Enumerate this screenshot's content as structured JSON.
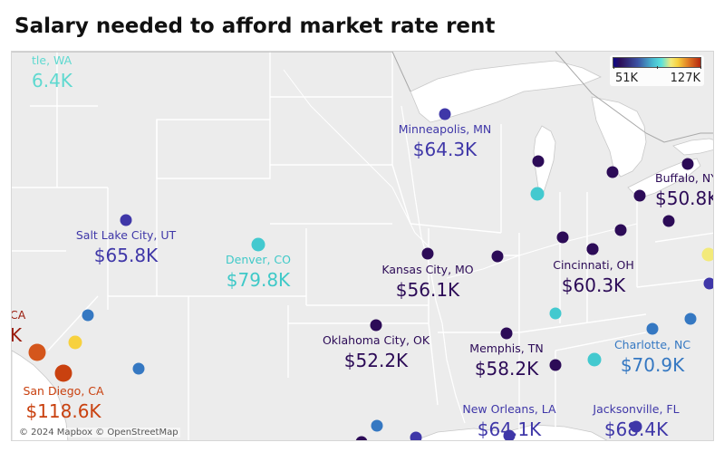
{
  "title": "Salary needed to afford market rate rent",
  "legend": {
    "min_label": "51K",
    "max_label": "127K",
    "min_value": 51,
    "max_value": 127
  },
  "attribution": "© 2024 Mapbox © OpenStreetMap",
  "colors": {
    "deep_purple": "#2c0b57",
    "indigo": "#3f37a8",
    "blue": "#3578c2",
    "cyan": "#43c9cf",
    "yellow": "#f7d13e",
    "orange": "#d4561c",
    "red": "#b8250f",
    "label_seattle": "#3fd0c8",
    "label_la": "#9a1b0c"
  },
  "labels": {
    "seattle": {
      "name": "tle, WA",
      "value": "6.4K"
    },
    "minneapolis": {
      "name": "Minneapolis, MN",
      "value": "$64.3K"
    },
    "buffalo": {
      "name": "Buffalo, NY",
      "value": "$50.8K"
    },
    "salt_lake_city": {
      "name": "Salt Lake City, UT",
      "value": "$65.8K"
    },
    "denver": {
      "name": "Denver, CO",
      "value": "$79.8K"
    },
    "kansas_city": {
      "name": "Kansas City, MO",
      "value": "$56.1K"
    },
    "cincinnati": {
      "name": "Cincinnati, OH",
      "value": "$60.3K"
    },
    "los_angeles": {
      "name": "CA",
      "value": "K"
    },
    "oklahoma_city": {
      "name": "Oklahoma City, OK",
      "value": "$52.2K"
    },
    "memphis": {
      "name": "Memphis, TN",
      "value": "$58.2K"
    },
    "charlotte": {
      "name": "Charlotte, NC",
      "value": "$70.9K"
    },
    "san_diego": {
      "name": "San Diego, CA",
      "value": "$118.6K"
    },
    "new_orleans": {
      "name": "New Orleans, LA",
      "value": "$64.1K"
    },
    "jacksonville": {
      "name": "Jacksonville, FL",
      "value": "$68.4K"
    }
  },
  "points": [
    {
      "id": "minneapolis-point",
      "color": "#3f37a8"
    },
    {
      "id": "chicago-point",
      "color": "#43c9cf"
    },
    {
      "id": "milwaukee-point",
      "color": "#2c0b57"
    },
    {
      "id": "grand-rapids-point",
      "color": "#2c0b57"
    },
    {
      "id": "detroit-point",
      "color": "#2c0b57"
    },
    {
      "id": "buffalo-point",
      "color": "#2c0b57"
    },
    {
      "id": "cleveland-point",
      "color": "#2c0b57"
    },
    {
      "id": "pittsburgh-point",
      "color": "#2c0b57"
    },
    {
      "id": "columbus-point",
      "color": "#2c0b57"
    },
    {
      "id": "indianapolis-point",
      "color": "#2c0b57"
    },
    {
      "id": "cincinnati-point",
      "color": "#2c0b57"
    },
    {
      "id": "kansas-city-point",
      "color": "#2c0b57"
    },
    {
      "id": "st-louis-point",
      "color": "#2c0b57"
    },
    {
      "id": "salt-lake-city-point",
      "color": "#3f37a8"
    },
    {
      "id": "denver-point",
      "color": "#43c9cf"
    },
    {
      "id": "oklahoma-city-point",
      "color": "#2c0b57"
    },
    {
      "id": "memphis-point",
      "color": "#2c0b57"
    },
    {
      "id": "nashville-point",
      "color": "#43c9cf"
    },
    {
      "id": "atlanta-point",
      "color": "#43c9cf"
    },
    {
      "id": "birmingham-point",
      "color": "#2c0b57"
    },
    {
      "id": "charlotte-point",
      "color": "#3578c2"
    },
    {
      "id": "raleigh-point",
      "color": "#3578c2"
    },
    {
      "id": "richmond-point",
      "color": "#3f37a8"
    },
    {
      "id": "washington-point",
      "color": "#f3ea7a"
    },
    {
      "id": "las-vegas-point",
      "color": "#3578c2"
    },
    {
      "id": "phoenix-point",
      "color": "#3578c2"
    },
    {
      "id": "riverside-point",
      "color": "#f7d13e"
    },
    {
      "id": "los-angeles-point",
      "color": "#d4561c"
    },
    {
      "id": "san-diego-point",
      "color": "#c9410f"
    },
    {
      "id": "dallas-point",
      "color": "#3578c2"
    },
    {
      "id": "houston-point",
      "color": "#3f37a8"
    },
    {
      "id": "austin-point",
      "color": "#2c0b57"
    },
    {
      "id": "new-orleans-point",
      "color": "#3f37a8"
    },
    {
      "id": "jacksonville-point",
      "color": "#3f37a8"
    }
  ]
}
